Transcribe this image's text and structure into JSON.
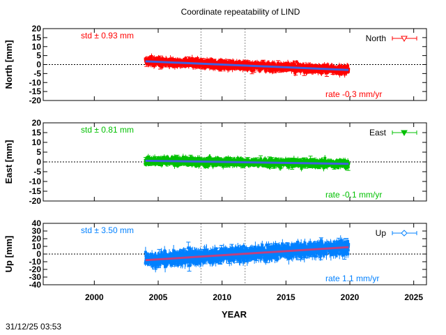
{
  "chart_data": [
    {
      "type": "scatter",
      "title": "Coordinate repeatability of LIND",
      "ylabel": "North [mm]",
      "xlim": [
        1996,
        2026
      ],
      "ylim": [
        -20,
        20
      ],
      "yticks": [
        20,
        15,
        10,
        5,
        0,
        -5,
        -10,
        -15,
        -20
      ],
      "legend": "North",
      "legend_placement": "top-right",
      "std_label": "std ± 0.93 mm",
      "rate_label": "rate -0.3 mm/yr",
      "color": "#ff0000",
      "trend_color": "#4060e0",
      "marker": "open-down-triangle",
      "data_range": [
        2004.0,
        2019.9
      ],
      "trend": [
        [
          2004.0,
          1.8
        ],
        [
          2019.9,
          -3.0
        ]
      ],
      "std": 0.93,
      "rate": -0.3
    },
    {
      "type": "scatter",
      "ylabel": "East [mm]",
      "xlim": [
        1996,
        2026
      ],
      "ylim": [
        -20,
        20
      ],
      "yticks": [
        20,
        15,
        10,
        5,
        0,
        -5,
        -10,
        -15,
        -20
      ],
      "legend": "East",
      "legend_placement": "top-right",
      "std_label": "std ± 0.81 mm",
      "rate_label": "rate -0.1 mm/yr",
      "color": "#00c000",
      "trend_color": "#4060e0",
      "marker": "filled-down-triangle",
      "data_range": [
        2004.0,
        2019.9
      ],
      "trend": [
        [
          2004.0,
          0.6
        ],
        [
          2019.9,
          -1.0
        ]
      ],
      "std": 0.81,
      "rate": -0.1
    },
    {
      "type": "scatter",
      "ylabel": "Up [mm]",
      "xlabel": "YEAR",
      "xlim": [
        1996,
        2026
      ],
      "ylim": [
        -40,
        40
      ],
      "yticks": [
        40,
        30,
        20,
        10,
        0,
        -10,
        -20,
        -30,
        -40
      ],
      "xticks": [
        "2000",
        "2005",
        "2010",
        "2015",
        "2020",
        "2025"
      ],
      "legend": "Up",
      "legend_placement": "top-right",
      "std_label": "std ± 3.50 mm",
      "rate_label": "rate  1.1 mm/yr",
      "color": "#0080ff",
      "trend_color": "#c04080",
      "marker": "open-diamond",
      "data_range": [
        2004.0,
        2019.9
      ],
      "trend": [
        [
          2004.0,
          -8.0
        ],
        [
          2019.9,
          9.0
        ]
      ],
      "std": 3.5,
      "rate": 1.1
    }
  ],
  "vertical_markers": [
    2008.35,
    2011.8
  ],
  "timestamp": "31/12/25 03:53"
}
